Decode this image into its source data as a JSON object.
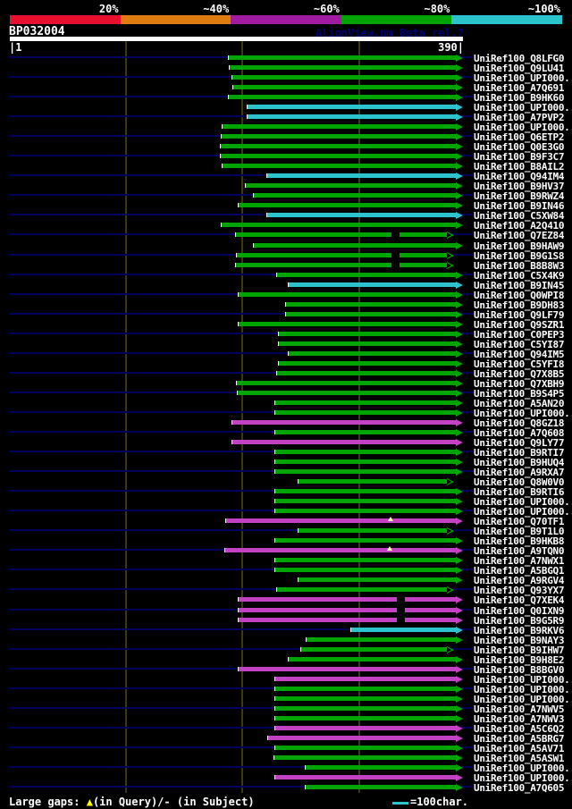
{
  "scale_legend": {
    "labels": [
      "20%",
      "~40%",
      "~60%",
      "~80%",
      "~100%"
    ],
    "colors": [
      "#e8102d",
      "#de7c0e",
      "#a11ba1",
      "#00a400",
      "#2cc3ce"
    ]
  },
  "header": {
    "query_id": "BP032004",
    "app_label": "AlignView.pm Beta rel.7"
  },
  "ruler": {
    "start_label": "|1",
    "end_label": "390|",
    "min": 1,
    "max": 390,
    "gridlines": [
      100,
      200,
      300
    ]
  },
  "footer": {
    "gap_note_prefix": "Large gaps: ",
    "query_gap_symbol": "▲",
    "query_gap_note": "(in Query)/",
    "subject_gap_symbol": "-",
    "subject_gap_note": " (in Subject)",
    "char_scale_label": "=100char."
  },
  "colors": {
    "green": "#00a400",
    "cyan": "#2cc3ce",
    "magenta": "#c341c3",
    "guide_line": "#00005c",
    "gridline": "#3a3a0c",
    "query_bar": "#ffffff",
    "query_gap_marker": "#ffffa6",
    "subject_gap_marker": "#000000"
  },
  "chart_data": {
    "type": "alignment_hit_map",
    "title": "BP032004",
    "query_length": 390,
    "x_axis": {
      "start": 1,
      "end": 390,
      "gridlines": [
        100,
        200,
        300
      ]
    },
    "identity_bins": [
      "20%",
      "~40%",
      "~60%",
      "~80%",
      "~100%"
    ],
    "hits": [
      {
        "id": "UniRef100_Q8LFG0",
        "color": "green",
        "start": 188,
        "end": 390
      },
      {
        "id": "UniRef100_Q9LU41",
        "color": "green",
        "start": 189,
        "end": 390
      },
      {
        "id": "UniRef100_UPI000..",
        "color": "green",
        "start": 191,
        "end": 390
      },
      {
        "id": "UniRef100_A7Q691",
        "color": "green",
        "start": 192,
        "end": 390
      },
      {
        "id": "UniRef100_B9HK60",
        "color": "green",
        "start": 188,
        "end": 390
      },
      {
        "id": "UniRef100_UPI000..",
        "color": "cyan",
        "start": 204,
        "end": 390
      },
      {
        "id": "UniRef100_A7PVP2",
        "color": "cyan",
        "start": 204,
        "end": 390
      },
      {
        "id": "UniRef100_UPI000..",
        "color": "green",
        "start": 183,
        "end": 390
      },
      {
        "id": "UniRef100_Q6ETP2",
        "color": "green",
        "start": 182,
        "end": 390
      },
      {
        "id": "UniRef100_Q0E3G0",
        "color": "green",
        "start": 181,
        "end": 390
      },
      {
        "id": "UniRef100_B9F3C7",
        "color": "green",
        "start": 181,
        "end": 390
      },
      {
        "id": "UniRef100_B8AIL2",
        "color": "green",
        "start": 183,
        "end": 390
      },
      {
        "id": "UniRef100_Q94IM4",
        "color": "cyan",
        "start": 221,
        "end": 390
      },
      {
        "id": "UniRef100_B9HV37",
        "color": "green",
        "start": 203,
        "end": 390
      },
      {
        "id": "UniRef100_B9RWZ4",
        "color": "green",
        "start": 210,
        "end": 390
      },
      {
        "id": "UniRef100_B9IN46",
        "color": "green",
        "start": 197,
        "end": 390
      },
      {
        "id": "UniRef100_C5XW84",
        "color": "cyan",
        "start": 221,
        "end": 390
      },
      {
        "id": "UniRef100_A2Q410",
        "color": "green",
        "start": 182,
        "end": 390
      },
      {
        "id": "UniRef100_Q7EZ84",
        "color": "green",
        "start": 194,
        "end": 382,
        "marks": [
          {
            "type": "subject_gap",
            "pos": 332
          }
        ]
      },
      {
        "id": "UniRef100_B9HAW9",
        "color": "green",
        "start": 210,
        "end": 390
      },
      {
        "id": "UniRef100_B9G1S8",
        "color": "green",
        "start": 195,
        "end": 382,
        "marks": [
          {
            "type": "subject_gap",
            "pos": 332
          }
        ]
      },
      {
        "id": "UniRef100_B8B8W3",
        "color": "green",
        "start": 194,
        "end": 382,
        "marks": [
          {
            "type": "subject_gap",
            "pos": 332
          }
        ]
      },
      {
        "id": "UniRef100_C5X4K9",
        "color": "green",
        "start": 230,
        "end": 390
      },
      {
        "id": "UniRef100_B9IN45",
        "color": "cyan",
        "start": 240,
        "end": 390
      },
      {
        "id": "UniRef100_Q0WPI8",
        "color": "green",
        "start": 197,
        "end": 390
      },
      {
        "id": "UniRef100_B9DH83",
        "color": "green",
        "start": 237,
        "end": 390
      },
      {
        "id": "UniRef100_Q9LF79",
        "color": "green",
        "start": 237,
        "end": 390
      },
      {
        "id": "UniRef100_Q9SZR1",
        "color": "green",
        "start": 197,
        "end": 390
      },
      {
        "id": "UniRef100_C0PEP3",
        "color": "green",
        "start": 231,
        "end": 390
      },
      {
        "id": "UniRef100_C5YI87",
        "color": "green",
        "start": 231,
        "end": 390
      },
      {
        "id": "UniRef100_Q94IM5",
        "color": "green",
        "start": 240,
        "end": 390
      },
      {
        "id": "UniRef100_C5YFI8",
        "color": "green",
        "start": 231,
        "end": 390
      },
      {
        "id": "UniRef100_Q7X8B5",
        "color": "green",
        "start": 230,
        "end": 390
      },
      {
        "id": "UniRef100_Q7XBH9",
        "color": "green",
        "start": 195,
        "end": 390
      },
      {
        "id": "UniRef100_B9S4P5",
        "color": "green",
        "start": 196,
        "end": 390
      },
      {
        "id": "UniRef100_A5AN20",
        "color": "green",
        "start": 228,
        "end": 390
      },
      {
        "id": "UniRef100_UPI000..",
        "color": "green",
        "start": 228,
        "end": 390
      },
      {
        "id": "UniRef100_Q8GZ18",
        "color": "magenta",
        "start": 191,
        "end": 390
      },
      {
        "id": "UniRef100_A7Q608",
        "color": "green",
        "start": 228,
        "end": 390
      },
      {
        "id": "UniRef100_Q9LY77",
        "color": "magenta",
        "start": 191,
        "end": 390
      },
      {
        "id": "UniRef100_B9RTI7",
        "color": "green",
        "start": 228,
        "end": 390
      },
      {
        "id": "UniRef100_B9HUQ4",
        "color": "green",
        "start": 228,
        "end": 390
      },
      {
        "id": "UniRef100_A9RXA7",
        "color": "green",
        "start": 228,
        "end": 390
      },
      {
        "id": "UniRef100_Q8W0V0",
        "color": "green",
        "start": 248,
        "end": 382
      },
      {
        "id": "UniRef100_B9RTI6",
        "color": "green",
        "start": 228,
        "end": 390
      },
      {
        "id": "UniRef100_UPI000..",
        "color": "green",
        "start": 228,
        "end": 390
      },
      {
        "id": "UniRef100_UPI000..",
        "color": "green",
        "start": 228,
        "end": 390
      },
      {
        "id": "UniRef100_Q70TF1",
        "color": "magenta",
        "start": 186,
        "end": 390,
        "marks": [
          {
            "type": "query_gap",
            "pos": 328
          }
        ]
      },
      {
        "id": "UniRef100_B9T1L0",
        "color": "green",
        "start": 248,
        "end": 382
      },
      {
        "id": "UniRef100_B9HKB8",
        "color": "green",
        "start": 228,
        "end": 390
      },
      {
        "id": "UniRef100_A9TQN0",
        "color": "magenta",
        "start": 185,
        "end": 390,
        "marks": [
          {
            "type": "query_gap",
            "pos": 327
          }
        ]
      },
      {
        "id": "UniRef100_A7NWX1",
        "color": "green",
        "start": 228,
        "end": 390
      },
      {
        "id": "UniRef100_A5BGQ1",
        "color": "green",
        "start": 228,
        "end": 390
      },
      {
        "id": "UniRef100_A9RGV4",
        "color": "green",
        "start": 248,
        "end": 390
      },
      {
        "id": "UniRef100_Q93YX7",
        "color": "green",
        "start": 230,
        "end": 382
      },
      {
        "id": "UniRef100_Q7XEK4",
        "color": "magenta",
        "start": 197,
        "end": 390,
        "marks": [
          {
            "type": "subject_gap",
            "pos": 336
          }
        ]
      },
      {
        "id": "UniRef100_Q0IXN9",
        "color": "magenta",
        "start": 197,
        "end": 390,
        "marks": [
          {
            "type": "subject_gap",
            "pos": 336
          }
        ]
      },
      {
        "id": "UniRef100_B9G5R9",
        "color": "magenta",
        "start": 197,
        "end": 390,
        "marks": [
          {
            "type": "subject_gap",
            "pos": 336
          }
        ]
      },
      {
        "id": "UniRef100_B9RKV6",
        "color": "cyan",
        "start": 293,
        "end": 390
      },
      {
        "id": "UniRef100_B9NAY3",
        "color": "green",
        "start": 255,
        "end": 390
      },
      {
        "id": "UniRef100_B9IHW7",
        "color": "green",
        "start": 250,
        "end": 382
      },
      {
        "id": "UniRef100_B9H8E2",
        "color": "green",
        "start": 240,
        "end": 390
      },
      {
        "id": "UniRef100_B8BGV0",
        "color": "magenta",
        "start": 197,
        "end": 390
      },
      {
        "id": "UniRef100_UPI000..",
        "color": "magenta",
        "start": 228,
        "end": 390
      },
      {
        "id": "UniRef100_UPI000..",
        "color": "green",
        "start": 228,
        "end": 390
      },
      {
        "id": "UniRef100_UPI000..",
        "color": "green",
        "start": 228,
        "end": 390
      },
      {
        "id": "UniRef100_A7NWV5",
        "color": "green",
        "start": 228,
        "end": 390
      },
      {
        "id": "UniRef100_A7NWV3",
        "color": "green",
        "start": 228,
        "end": 390
      },
      {
        "id": "UniRef100_A5C6Q2",
        "color": "magenta",
        "start": 228,
        "end": 390
      },
      {
        "id": "UniRef100_A5BRG7",
        "color": "magenta",
        "start": 222,
        "end": 390
      },
      {
        "id": "UniRef100_A5AV71",
        "color": "green",
        "start": 228,
        "end": 390
      },
      {
        "id": "UniRef100_A5ASW1",
        "color": "green",
        "start": 227,
        "end": 390
      },
      {
        "id": "UniRef100_UPI000..",
        "color": "green",
        "start": 254,
        "end": 390
      },
      {
        "id": "UniRef100_UPI000..",
        "color": "magenta",
        "start": 228,
        "end": 390
      },
      {
        "id": "UniRef100_A7Q605",
        "color": "green",
        "start": 254,
        "end": 390
      }
    ]
  }
}
